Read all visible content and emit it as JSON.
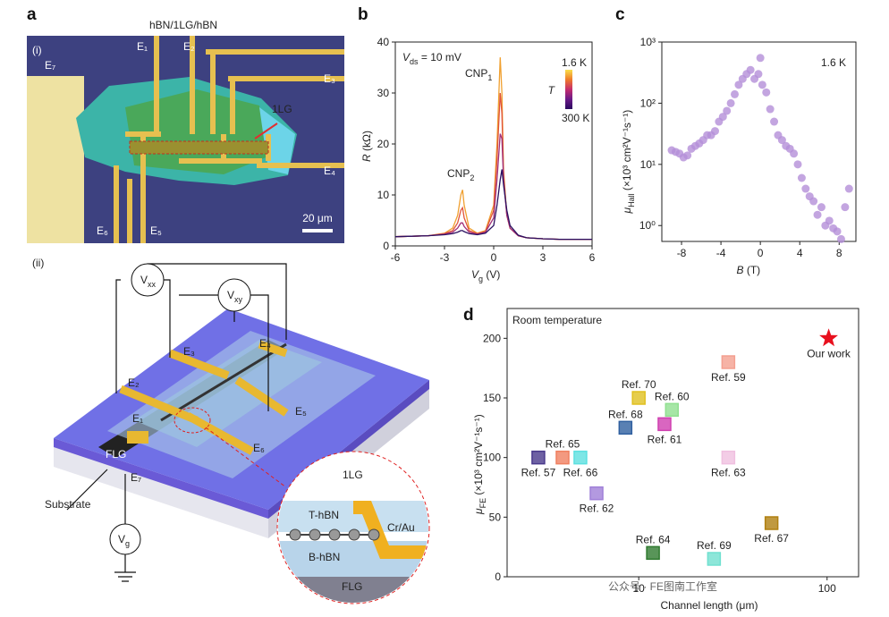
{
  "panel_labels": [
    "a",
    "b",
    "c",
    "d"
  ],
  "micrograph": {
    "label": "(i)",
    "title": "hBN/1LG/hBN",
    "electrodes": [
      "E₁",
      "E₂",
      "E₃",
      "E₄",
      "E₅",
      "E₆",
      "E₇"
    ],
    "flake": "1LG",
    "scale_bar": "20 μm"
  },
  "schematic": {
    "label": "(ii)",
    "meters": [
      {
        "main": "V",
        "sub": "xx"
      },
      {
        "main": "V",
        "sub": "xy"
      },
      {
        "main": "V",
        "sub": "g"
      }
    ],
    "electrodes": [
      "E₁",
      "E₂",
      "E₃",
      "E₄",
      "E₅",
      "E₆",
      "E₇"
    ],
    "gate": "FLG",
    "substrate": "Substrate",
    "inset": {
      "graphene": "1LG",
      "top": "T-hBN",
      "contact": "Cr/Au",
      "bottom": "B-hBN",
      "gate": "FLG"
    }
  },
  "watermark": "公众号 · FE图南工作室",
  "chart_data": [
    {
      "type": "line",
      "x_label": {
        "main": "V",
        "sub": "g",
        "rest": " (V)"
      },
      "y_label": {
        "main": "R",
        "rest": " (kΩ)"
      },
      "annotations": [
        {
          "main": "V",
          "sub": "ds",
          "rest": " = 10 mV"
        },
        {
          "main": "CNP",
          "sub": "1"
        },
        {
          "main": "CNP",
          "sub": "2"
        }
      ],
      "colorbar": {
        "label": "T",
        "top": "1.6 K",
        "bottom": "300 K",
        "colors": [
          "#f9e04a",
          "#ef7a2a",
          "#c42c6e",
          "#6a1a88",
          "#2a0a5e"
        ]
      },
      "x": [
        -6,
        -5,
        -4,
        -3,
        -2.5,
        -2.2,
        -2,
        -1.9,
        -1.8,
        -1.5,
        -1,
        -0.5,
        0,
        0.2,
        0.4,
        0.5,
        0.6,
        0.8,
        1,
        1.5,
        2,
        3,
        4,
        5,
        6
      ],
      "series": [
        {
          "color": "#f0a030",
          "values": [
            1.8,
            1.9,
            2.0,
            2.5,
            3.5,
            6,
            10,
            11,
            8,
            3.5,
            2.5,
            3,
            8,
            20,
            37,
            30,
            15,
            6,
            3.5,
            2,
            1.6,
            1.4,
            1.3,
            1.3,
            1.3
          ]
        },
        {
          "color": "#e0533a",
          "values": [
            1.8,
            1.9,
            2.0,
            2.4,
            3,
            4.5,
            7,
            7.5,
            5.5,
            3,
            2.4,
            2.8,
            7,
            17,
            30,
            26,
            14,
            6,
            3.5,
            2,
            1.6,
            1.4,
            1.3,
            1.3,
            1.3
          ]
        },
        {
          "color": "#a0307a",
          "values": [
            1.8,
            1.9,
            2,
            2.3,
            2.7,
            3.5,
            4.5,
            4.5,
            3.8,
            2.7,
            2.3,
            2.7,
            5.5,
            13,
            22,
            21,
            13,
            6,
            3.5,
            2,
            1.6,
            1.4,
            1.3,
            1.3,
            1.3
          ]
        },
        {
          "color": "#2b1060",
          "values": [
            1.8,
            1.9,
            2,
            2.2,
            2.4,
            2.7,
            3,
            3,
            2.8,
            2.4,
            2.2,
            2.5,
            4,
            8,
            13,
            15,
            12,
            7,
            4,
            2.1,
            1.6,
            1.4,
            1.3,
            1.3,
            1.3
          ]
        }
      ],
      "xlim": [
        -6,
        6
      ],
      "xticks": [
        -6,
        -3,
        0,
        3,
        6
      ],
      "ylim": [
        0,
        40
      ],
      "yticks": [
        0,
        10,
        20,
        30,
        40
      ]
    },
    {
      "type": "scatter",
      "x_label": {
        "main": "B",
        "rest": " (T)"
      },
      "y_label": {
        "main": "μ",
        "sub": "Hall",
        "rest": " (×10³ cm²V⁻¹s⁻¹)"
      },
      "annotations": [
        {
          "main": "1.6 K"
        }
      ],
      "color": "#b48fd8",
      "yscale": "log",
      "x": [
        -9,
        -8.6,
        -8.2,
        -7.8,
        -7.4,
        -7,
        -6.6,
        -6.2,
        -5.8,
        -5.4,
        -5,
        -4.6,
        -4.2,
        -3.8,
        -3.4,
        -3,
        -2.6,
        -2.2,
        -1.8,
        -1.4,
        -1,
        -0.6,
        -0.2,
        0,
        0.2,
        0.6,
        1,
        1.4,
        1.8,
        2.2,
        2.6,
        3,
        3.4,
        3.8,
        4.2,
        4.6,
        5,
        5.4,
        5.8,
        6.2,
        6.6,
        7,
        7.4,
        7.8,
        8.2,
        8.6,
        9
      ],
      "values": [
        17,
        16,
        15,
        13,
        14,
        18,
        20,
        22,
        25,
        30,
        30,
        35,
        50,
        60,
        75,
        100,
        140,
        200,
        250,
        300,
        350,
        250,
        300,
        550,
        200,
        150,
        80,
        50,
        30,
        25,
        20,
        18,
        15,
        10,
        6,
        4,
        3,
        2.5,
        1.5,
        2,
        1,
        1.2,
        0.9,
        0.8,
        0.6,
        2,
        4
      ],
      "xlim": [
        -10,
        9.7
      ],
      "xticks": [
        -8,
        -4,
        0,
        4,
        8
      ],
      "ylim": [
        0.55,
        1000
      ],
      "yticks": [
        {
          "value": 1,
          "label": "10⁰"
        },
        {
          "value": 10,
          "label": "10¹"
        },
        {
          "value": 100,
          "label": "10²"
        },
        {
          "value": 1000,
          "label": "10³"
        }
      ]
    },
    {
      "type": "scatter",
      "x_label": {
        "main": "Channel length (μm)"
      },
      "y_label": {
        "main": "μ",
        "sub": "FE",
        "rest": " (×10³ cm²V⁻¹s⁻¹)"
      },
      "annotations": [
        {
          "main": "Room temperature"
        }
      ],
      "xscale": "log",
      "x": [
        2.93,
        3.94,
        4.9,
        5.97,
        8.5,
        10,
        13.7,
        15,
        11.9,
        25.1,
        29.9,
        29.9,
        50.7,
        102
      ],
      "values": [
        100,
        100,
        100,
        70,
        125,
        150,
        128,
        140,
        20,
        15,
        100,
        180,
        45,
        200
      ],
      "point_labels": [
        "Ref. 57",
        "Ref. 65",
        "Ref. 66",
        "Ref. 62",
        "Ref. 68",
        "Ref. 70",
        "Ref. 61",
        "Ref. 60",
        "Ref. 64",
        "Ref. 69",
        "Ref. 63",
        "Ref. 59",
        "Ref. 67",
        "Our work"
      ],
      "colors": [
        "#4a3a8c",
        "#f08060",
        "#5ce0e0",
        "#a080d8",
        "#3060a0",
        "#e0c020",
        "#d040b0",
        "#90e090",
        "#2f7a2f",
        "#70e0d0",
        "#f0c0e0",
        "#f4a090",
        "#b08010",
        "#e8101e"
      ],
      "markers": [
        "square",
        "square",
        "square",
        "square",
        "square",
        "square",
        "square",
        "square",
        "square",
        "square",
        "square",
        "square",
        "square",
        "star"
      ],
      "label_positions": [
        "below",
        "above",
        "below",
        "below",
        "above",
        "above",
        "below",
        "above",
        "above",
        "above",
        "below",
        "below",
        "below",
        "below"
      ],
      "xlim": [
        2,
        147
      ],
      "xticks": [
        10,
        100
      ],
      "ylim": [
        0,
        225
      ],
      "yticks": [
        0,
        50,
        100,
        150,
        200
      ]
    }
  ]
}
